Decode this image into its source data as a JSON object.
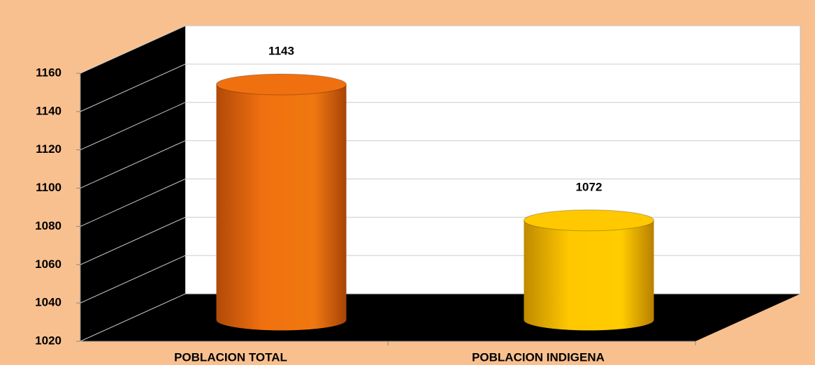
{
  "chart_data": {
    "type": "bar3d",
    "categories": [
      "POBLACION TOTAL",
      "POBLACION INDIGENA"
    ],
    "values": [
      1143,
      1072
    ],
    "colors": [
      "#f07010",
      "#ffc800"
    ],
    "ylim": [
      1020,
      1160
    ],
    "yticks": [
      1020,
      1040,
      1060,
      1080,
      1100,
      1120,
      1140,
      1160
    ],
    "grid": true
  }
}
